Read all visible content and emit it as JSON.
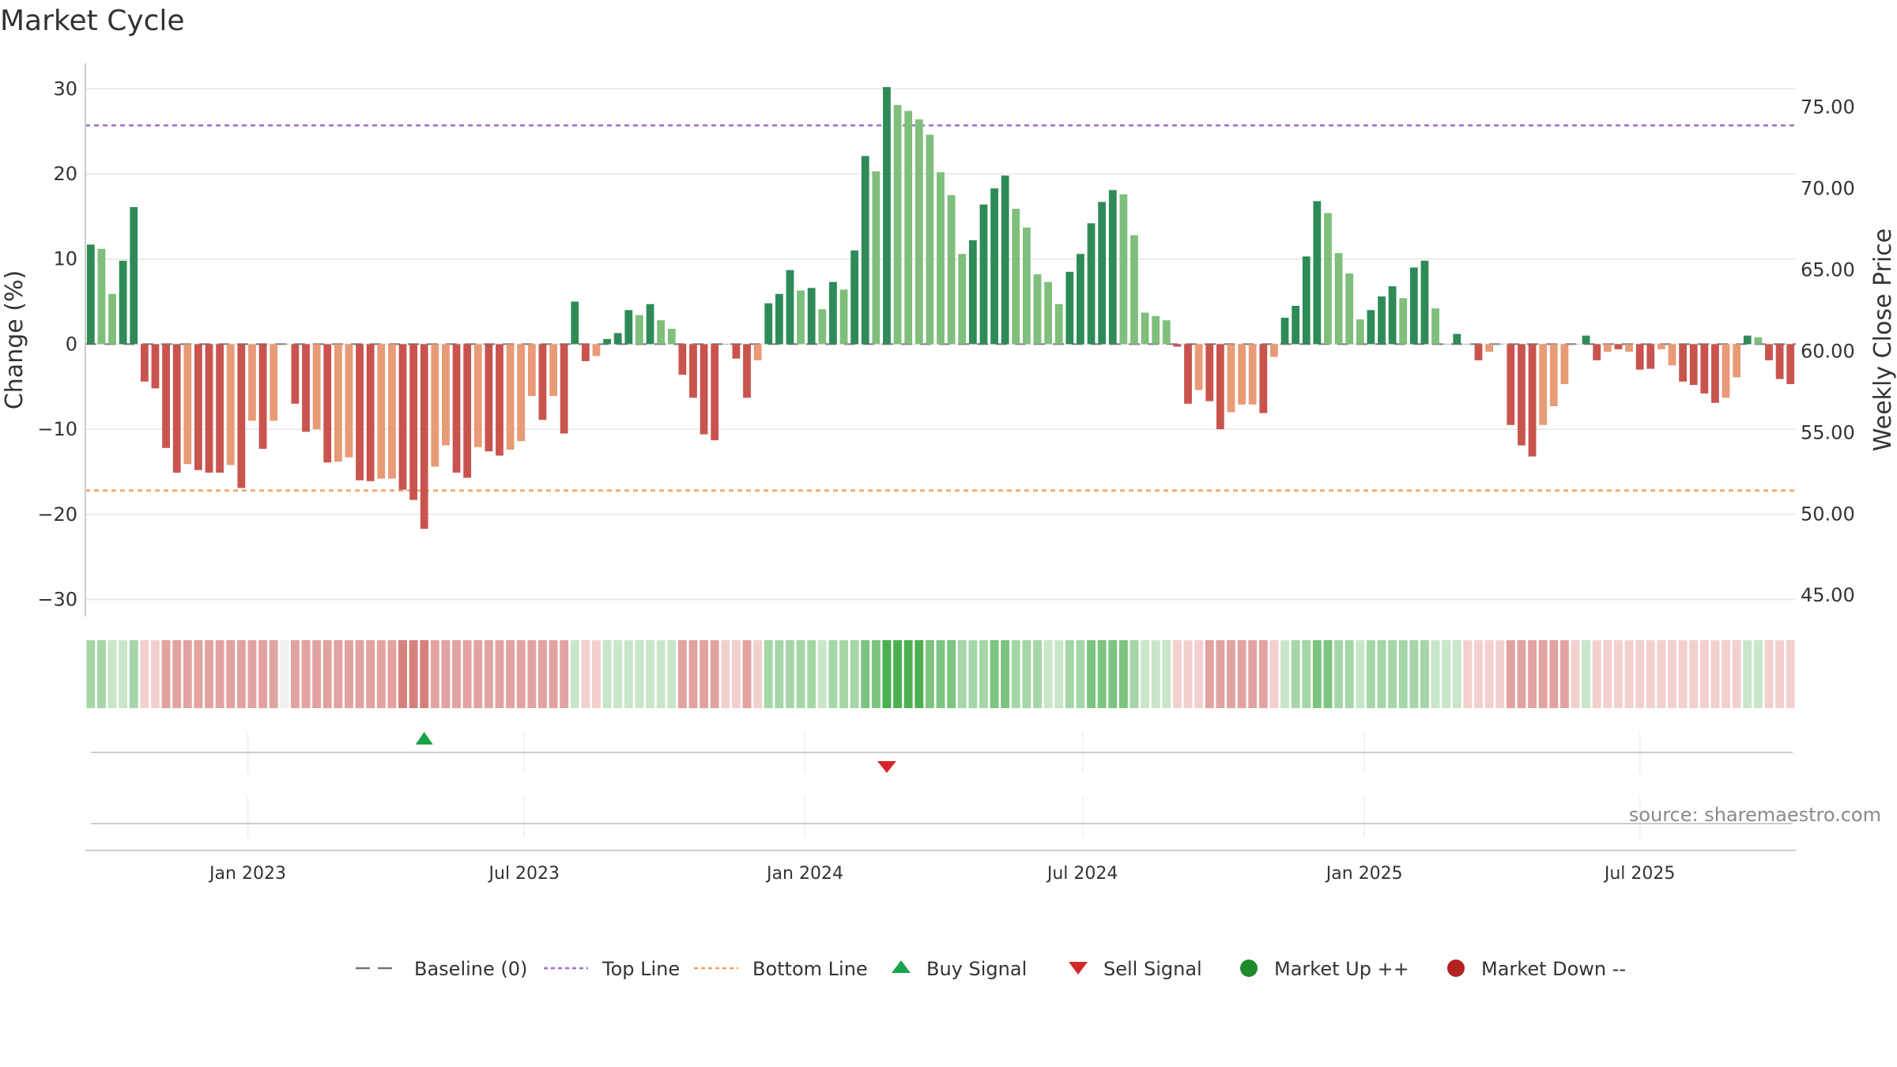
{
  "title": "Market Cycle",
  "source": "source: sharemaestro.com",
  "colors": {
    "up_strong": "#2e8b57",
    "up_light": "#7fbf7b",
    "down_strong": "#c9544e",
    "down_light": "#e99a76",
    "top_line": "#9a6fc9",
    "bottom_line": "#f2a05f",
    "buy": "#1aa34a",
    "sell": "#d62728",
    "market_up": "#1f8a2b",
    "market_down": "#b22222",
    "baseline": "#777777"
  },
  "chart_data": {
    "type": "bar",
    "title": "Market Cycle",
    "ylabel": "Change (%)",
    "y2label": "Weekly Close Price",
    "ylim": [
      -32,
      33
    ],
    "y2lim": [
      43.7,
      77.7
    ],
    "yticks": [
      "30",
      "20",
      "10",
      "0",
      "−10",
      "−20",
      "−30"
    ],
    "y2ticks": [
      "75.00",
      "70.00",
      "65.00",
      "60.00",
      "55.00",
      "50.00",
      "45.00"
    ],
    "date_ticks": [
      "Jan 2023",
      "Jul 2023",
      "Jan 2024",
      "Jul 2024",
      "Jan 2025",
      "Jul 2025"
    ],
    "top_line": 25.7,
    "bottom_line": -17.2,
    "baseline": 0,
    "values": [
      11.7,
      11.2,
      5.9,
      9.8,
      16.1,
      -4.4,
      -5.2,
      -12.2,
      -15.1,
      -14.1,
      -14.8,
      -15.1,
      -15.1,
      -14.2,
      -16.9,
      -9.0,
      -12.3,
      -9.0,
      0,
      -7.0,
      -10.3,
      -10.0,
      -13.9,
      -13.8,
      -13.3,
      -16.0,
      -16.1,
      -15.8,
      -15.8,
      -17.1,
      -18.3,
      -21.7,
      -14.4,
      -11.9,
      -15.1,
      -15.7,
      -12.1,
      -12.6,
      -13.1,
      -12.4,
      -11.4,
      -6.1,
      -8.9,
      -6.1,
      -10.5,
      5.0,
      -2.0,
      -1.4,
      0.6,
      1.3,
      4.0,
      3.4,
      4.7,
      2.8,
      1.8,
      -3.6,
      -6.3,
      -10.6,
      -11.3,
      0,
      -1.7,
      -6.3,
      -1.9,
      4.8,
      5.9,
      8.7,
      6.3,
      6.6,
      4.1,
      7.3,
      6.4,
      11.0,
      22.1,
      20.3,
      30.2,
      28.1,
      27.4,
      26.4,
      24.6,
      20.2,
      17.5,
      10.6,
      12.2,
      16.4,
      18.3,
      19.8,
      15.9,
      13.7,
      8.2,
      7.3,
      4.7,
      8.5,
      10.6,
      14.2,
      16.7,
      18.1,
      17.6,
      12.8,
      3.7,
      3.3,
      2.8,
      -0.3,
      -7.0,
      -5.4,
      -6.7,
      -10.0,
      -8.0,
      -7.1,
      -7.1,
      -8.1,
      -1.5,
      3.1,
      4.5,
      10.3,
      16.8,
      15.4,
      10.7,
      8.3,
      2.9,
      4.0,
      5.6,
      6.8,
      5.4,
      9.0,
      9.8,
      4.2,
      0,
      1.2,
      0,
      -1.9,
      -0.9,
      0,
      -9.5,
      -11.9,
      -13.2,
      -9.5,
      -7.3,
      -4.7,
      0,
      1.0,
      -1.9,
      -0.9,
      -0.6,
      -0.9,
      -3.0,
      -2.9,
      -0.6,
      -2.5,
      -4.4,
      -4.8,
      -5.8,
      -6.9,
      -6.3,
      -3.9,
      1.0,
      0.8,
      -1.9,
      -4.1,
      -4.7
    ],
    "strength": [
      1,
      0,
      0,
      1,
      1,
      1,
      1,
      1,
      1,
      0,
      1,
      1,
      1,
      0,
      1,
      0,
      1,
      0,
      0,
      1,
      1,
      0,
      1,
      0,
      0,
      1,
      1,
      0,
      0,
      1,
      1,
      1,
      0,
      0,
      1,
      1,
      0,
      1,
      1,
      0,
      0,
      0,
      1,
      0,
      1,
      1,
      1,
      0,
      1,
      1,
      1,
      0,
      1,
      0,
      0,
      1,
      1,
      1,
      1,
      0,
      1,
      1,
      0,
      1,
      1,
      1,
      0,
      1,
      0,
      1,
      0,
      1,
      1,
      0,
      1,
      0,
      0,
      0,
      0,
      0,
      0,
      0,
      1,
      1,
      1,
      1,
      0,
      0,
      0,
      0,
      0,
      1,
      1,
      1,
      1,
      1,
      0,
      0,
      0,
      0,
      0,
      1,
      1,
      0,
      1,
      1,
      0,
      0,
      0,
      1,
      0,
      1,
      1,
      1,
      1,
      0,
      0,
      0,
      0,
      1,
      1,
      1,
      0,
      1,
      1,
      0,
      0,
      1,
      0,
      1,
      0,
      0,
      1,
      1,
      1,
      0,
      0,
      0,
      0,
      1,
      1,
      0,
      1,
      0,
      1,
      1,
      0,
      0,
      1,
      1,
      1,
      1,
      0,
      0,
      1,
      0,
      1,
      1,
      1
    ],
    "heat": [
      2,
      2,
      1,
      1,
      2,
      -1,
      -1,
      -2,
      -2,
      -2,
      -2,
      -2,
      -2,
      -2,
      -2,
      -2,
      -2,
      -2,
      0,
      -2,
      -2,
      -2,
      -2,
      -2,
      -2,
      -2,
      -2,
      -2,
      -2,
      -3,
      -3,
      -3,
      -2,
      -2,
      -2,
      -2,
      -2,
      -2,
      -2,
      -2,
      -2,
      -2,
      -2,
      -2,
      -2,
      1,
      -1,
      -1,
      1,
      1,
      1,
      1,
      1,
      1,
      1,
      -2,
      -2,
      -2,
      -2,
      -1,
      -1,
      -2,
      -1,
      2,
      2,
      2,
      2,
      2,
      1,
      2,
      2,
      2,
      3,
      3,
      4,
      4,
      4,
      4,
      3,
      3,
      3,
      2,
      2,
      2,
      3,
      3,
      2,
      2,
      2,
      1,
      1,
      2,
      2,
      3,
      3,
      3,
      3,
      2,
      1,
      1,
      1,
      -1,
      -1,
      -1,
      -2,
      -2,
      -2,
      -2,
      -2,
      -2,
      -1,
      1,
      2,
      2,
      3,
      3,
      2,
      2,
      1,
      2,
      2,
      2,
      2,
      2,
      2,
      1,
      1,
      1,
      -1,
      -1,
      -1,
      -1,
      -2,
      -2,
      -2,
      -2,
      -2,
      -2,
      -1,
      1,
      -1,
      -1,
      -1,
      -1,
      -1,
      -1,
      -1,
      -1,
      -1,
      -1,
      -1,
      -1,
      -1,
      -1,
      1,
      1,
      -1,
      -1,
      -1
    ],
    "buy_signals": [
      31
    ],
    "sell_signals": [
      74
    ],
    "legend": [
      {
        "key": "baseline",
        "label": "Baseline (0)"
      },
      {
        "key": "top",
        "label": "Top Line"
      },
      {
        "key": "bottom",
        "label": "Bottom Line"
      },
      {
        "key": "buy",
        "label": "Buy Signal"
      },
      {
        "key": "sell",
        "label": "Sell Signal"
      },
      {
        "key": "up",
        "label": "Market Up ++"
      },
      {
        "key": "down",
        "label": "Market Down --"
      }
    ],
    "legend_position": "bottom-center",
    "grid": true
  }
}
